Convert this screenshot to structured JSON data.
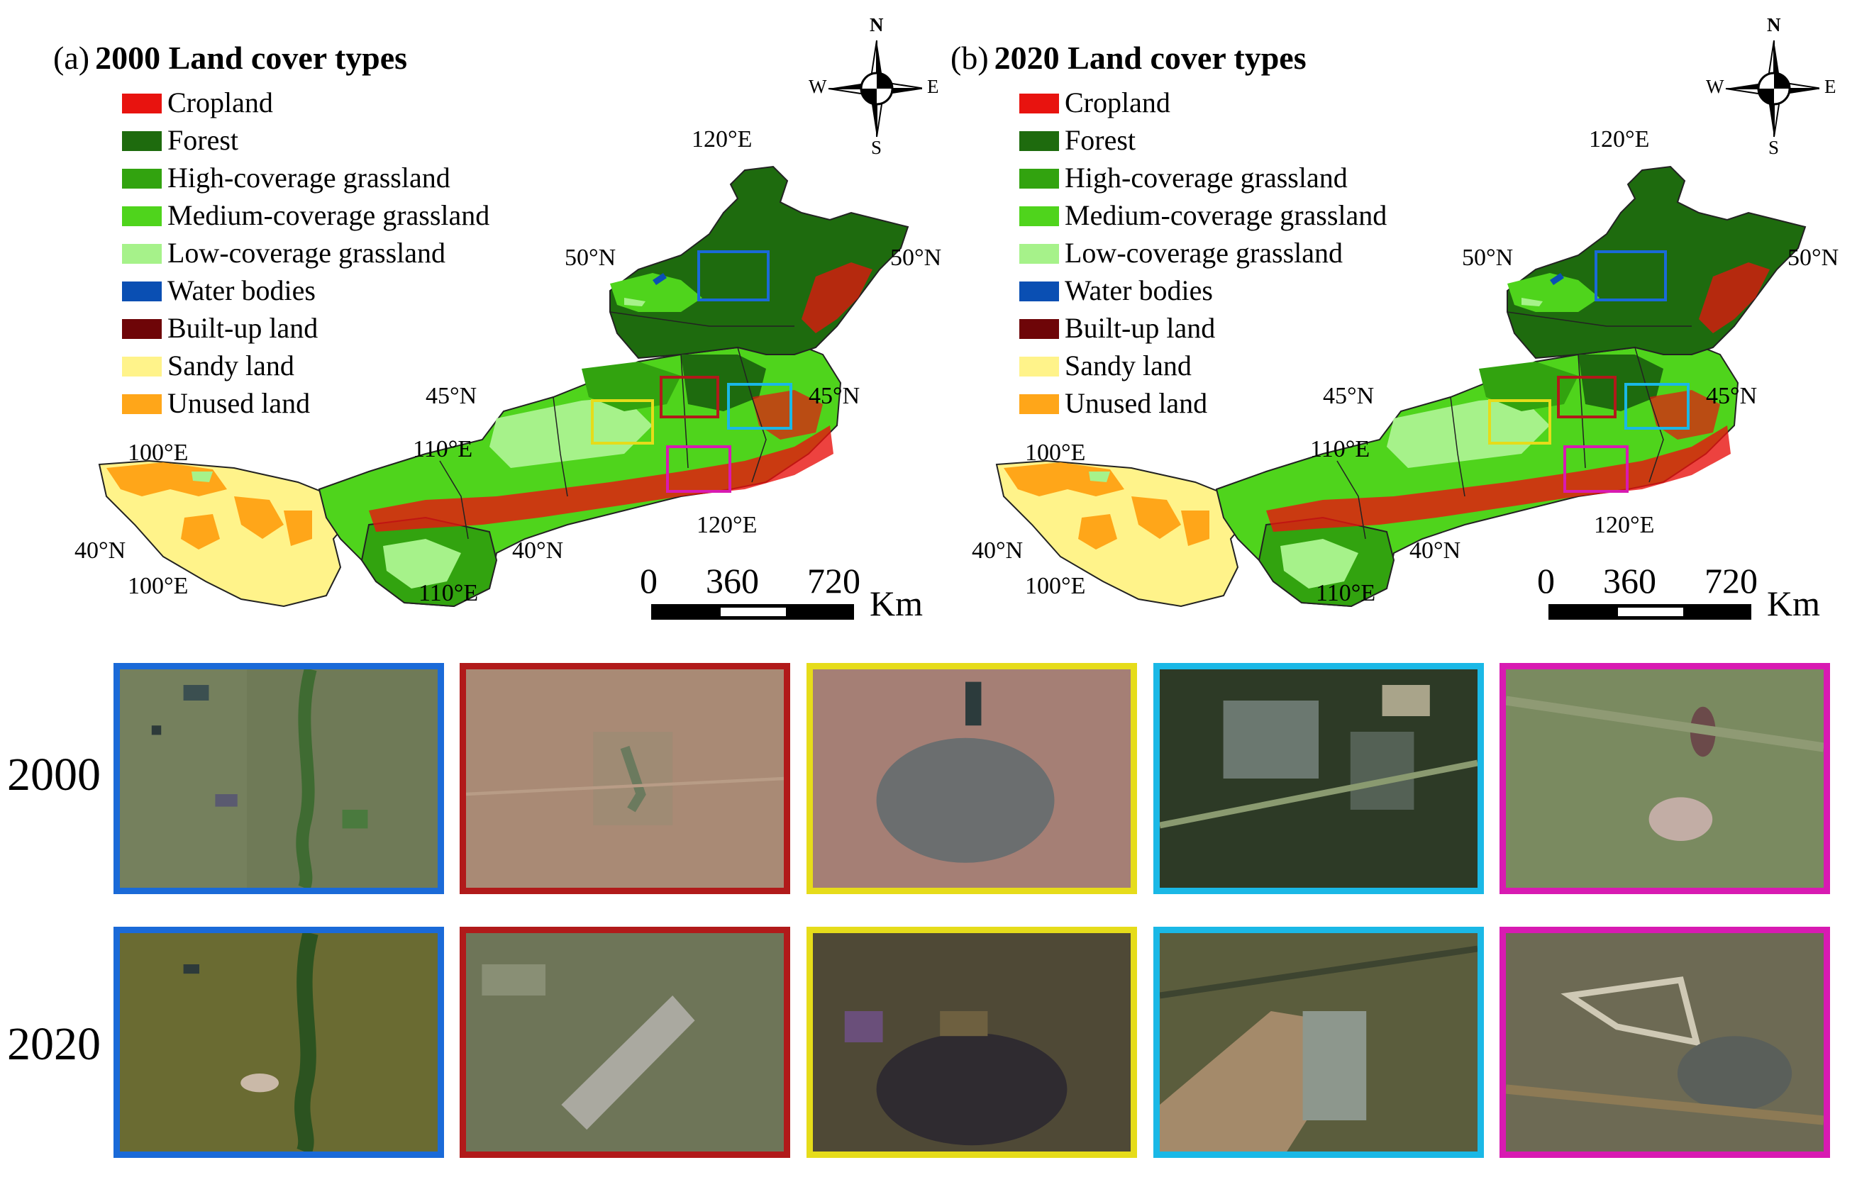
{
  "panels": [
    {
      "label": "(a)",
      "title": "2000 Land cover types"
    },
    {
      "label": "(b)",
      "title": "2020 Land cover types"
    }
  ],
  "legend": [
    {
      "label": "Cropland",
      "color": "#e8130f"
    },
    {
      "label": "Forest",
      "color": "#1e6b0e"
    },
    {
      "label": "High-coverage grassland",
      "color": "#32a30f"
    },
    {
      "label": "Medium-coverage grassland",
      "color": "#4fd41c"
    },
    {
      "label": "Low-coverage grassland",
      "color": "#a6f28a"
    },
    {
      "label": "Water bodies",
      "color": "#0a4fb3"
    },
    {
      "label": "Built-up land",
      "color": "#6e0508"
    },
    {
      "label": "Sandy land",
      "color": "#fff38a"
    },
    {
      "label": "Unused land",
      "color": "#ffa619"
    }
  ],
  "coords": {
    "lon_120_top": "120°E",
    "lat_50_left": "50°N",
    "lat_50_right": "50°N",
    "lat_45_left": "45°N",
    "lat_45_right": "45°N",
    "lon_100_top": "100°E",
    "lon_110_top": "110°E",
    "lon_120_bottom": "120°E",
    "lat_40_left": "40°N",
    "lat_40_right": "40°N",
    "lon_100_bottom": "100°E",
    "lon_110_bottom": "110°E"
  },
  "scalebar": {
    "tick0": "0",
    "tick1": "360",
    "tick2": "720",
    "unit": "Km"
  },
  "compass": {
    "n": "N",
    "s": "S",
    "e": "E",
    "w": "W"
  },
  "focus_box_colors": [
    "#1a6ad8",
    "#b11a1a",
    "#e6dc1a",
    "#1ab8e6",
    "#d81ab2"
  ],
  "rows": [
    {
      "year": "2000"
    },
    {
      "year": "2020"
    }
  ]
}
